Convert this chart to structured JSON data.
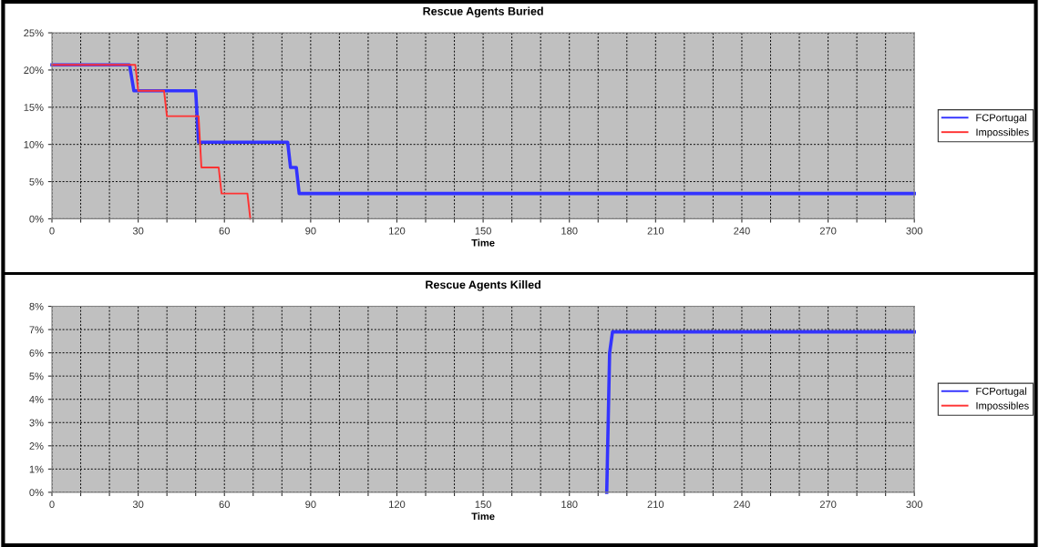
{
  "chart_data": [
    {
      "type": "line",
      "title": "Rescue Agents Buried",
      "xlabel": "Time",
      "xlim": [
        0,
        300
      ],
      "xticks": [
        0,
        {
          "value": 10,
          "label": null
        },
        {
          "value": 20,
          "label": null
        },
        30,
        {
          "value": 40,
          "label": null
        },
        {
          "value": 50,
          "label": null
        },
        60,
        {
          "value": 70,
          "label": null
        },
        {
          "value": 80,
          "label": null
        },
        90,
        {
          "value": 100,
          "label": null
        },
        {
          "value": 110,
          "label": null
        },
        120,
        {
          "value": 130,
          "label": null
        },
        {
          "value": 140,
          "label": null
        },
        150,
        {
          "value": 160,
          "label": null
        },
        {
          "value": 170,
          "label": null
        },
        180,
        {
          "value": 190,
          "label": null
        },
        {
          "value": 200,
          "label": null
        },
        210,
        {
          "value": 220,
          "label": null
        },
        {
          "value": 230,
          "label": null
        },
        240,
        {
          "value": 250,
          "label": null
        },
        {
          "value": 260,
          "label": null
        },
        270,
        {
          "value": 280,
          "label": null
        },
        {
          "value": 290,
          "label": null
        },
        300
      ],
      "ylim": [
        0,
        25
      ],
      "yticks": [
        {
          "value": 0,
          "label": "0%"
        },
        {
          "value": 5,
          "label": "5%"
        },
        {
          "value": 10,
          "label": "10%"
        },
        {
          "value": 15,
          "label": "15%"
        },
        {
          "value": 20,
          "label": "20%"
        },
        {
          "value": 25,
          "label": "25%"
        }
      ],
      "grid": true,
      "legend": "right",
      "marker": "none",
      "line_style": "solid",
      "series": [
        {
          "name": "FCPortugal",
          "color": "#3333ff",
          "x": [
            0,
            27,
            28.5,
            50,
            51,
            82,
            83,
            85,
            86,
            300
          ],
          "values": [
            20.7,
            20.7,
            17.2,
            17.2,
            10.3,
            10.3,
            6.9,
            6.9,
            3.4,
            3.4
          ]
        },
        {
          "name": "Impossibles",
          "color": "#ff3333",
          "x": [
            0,
            29,
            30,
            39,
            40,
            51,
            52,
            58,
            59,
            68,
            69
          ],
          "values": [
            20.7,
            20.7,
            17.2,
            17.2,
            13.8,
            13.8,
            6.9,
            6.9,
            3.4,
            3.4,
            0
          ]
        }
      ]
    },
    {
      "type": "line",
      "title": "Rescue Agents Killed",
      "xlabel": "Time",
      "xlim": [
        0,
        300
      ],
      "xticks": [
        0,
        {
          "value": 10,
          "label": null
        },
        {
          "value": 20,
          "label": null
        },
        30,
        {
          "value": 40,
          "label": null
        },
        {
          "value": 50,
          "label": null
        },
        60,
        {
          "value": 70,
          "label": null
        },
        {
          "value": 80,
          "label": null
        },
        90,
        {
          "value": 100,
          "label": null
        },
        {
          "value": 110,
          "label": null
        },
        120,
        {
          "value": 130,
          "label": null
        },
        {
          "value": 140,
          "label": null
        },
        150,
        {
          "value": 160,
          "label": null
        },
        {
          "value": 170,
          "label": null
        },
        180,
        {
          "value": 190,
          "label": null
        },
        {
          "value": 200,
          "label": null
        },
        210,
        {
          "value": 220,
          "label": null
        },
        {
          "value": 230,
          "label": null
        },
        240,
        {
          "value": 250,
          "label": null
        },
        {
          "value": 260,
          "label": null
        },
        270,
        {
          "value": 280,
          "label": null
        },
        {
          "value": 290,
          "label": null
        },
        300
      ],
      "ylim": [
        0,
        8
      ],
      "yticks": [
        {
          "value": 0,
          "label": "0%"
        },
        {
          "value": 1,
          "label": "1%"
        },
        {
          "value": 2,
          "label": "2%"
        },
        {
          "value": 3,
          "label": "3%"
        },
        {
          "value": 4,
          "label": "4%"
        },
        {
          "value": 5,
          "label": "5%"
        },
        {
          "value": 6,
          "label": "6%"
        },
        {
          "value": 7,
          "label": "7%"
        },
        {
          "value": 8,
          "label": "8%"
        }
      ],
      "grid": true,
      "legend": "right",
      "marker": "none",
      "line_style": "solid",
      "series": [
        {
          "name": "FCPortugal",
          "color": "#3333ff",
          "x": [
            193,
            194,
            195,
            300
          ],
          "values": [
            0,
            6.0,
            6.9,
            6.9
          ]
        },
        {
          "name": "Impossibles",
          "color": "#ff3333"
        }
      ]
    }
  ]
}
